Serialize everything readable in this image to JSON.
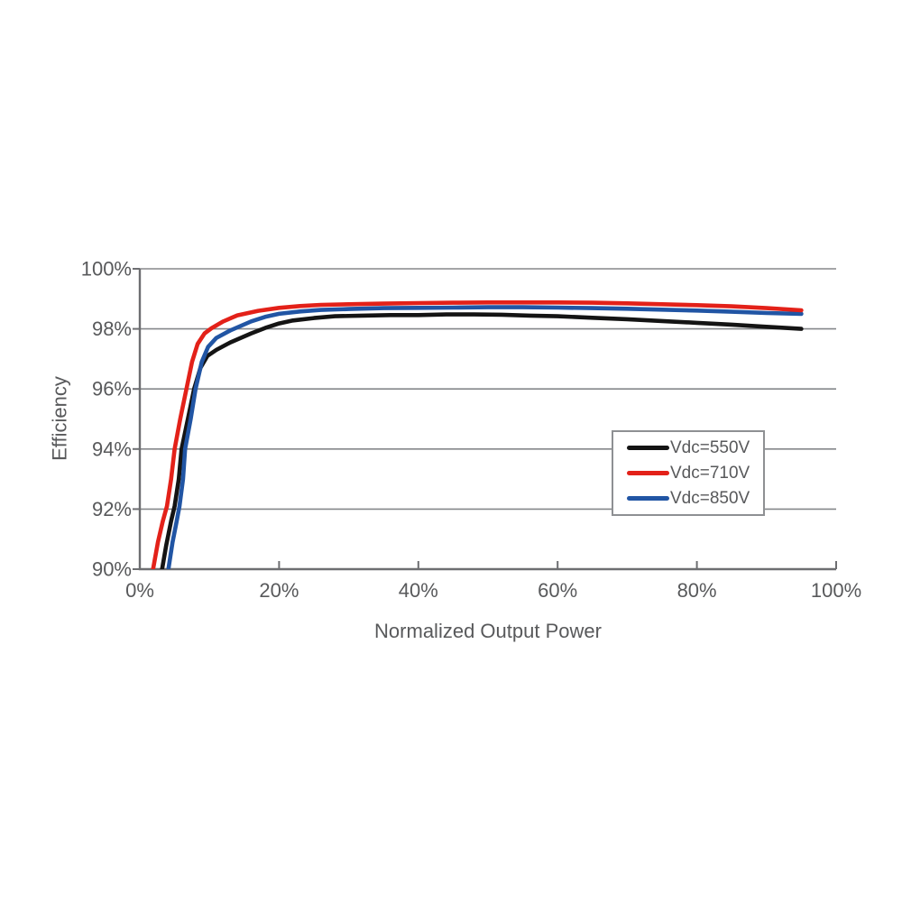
{
  "chart_data": {
    "type": "line",
    "title": "",
    "xlabel": "Normalized Output Power",
    "ylabel": "Efficiency",
    "xlim": [
      0,
      100
    ],
    "ylim": [
      90,
      100
    ],
    "grid": "horizontal",
    "legend_position": "inside-right-center",
    "x_ticks": [
      0,
      20,
      40,
      60,
      80,
      100
    ],
    "x_tick_labels": [
      "0%",
      "20%",
      "40%",
      "60%",
      "80%",
      "100%"
    ],
    "y_ticks": [
      100,
      98,
      96,
      94,
      92,
      90
    ],
    "y_tick_labels": [
      "100%",
      "98%",
      "96%",
      "94%",
      "92%",
      "90%"
    ],
    "series": [
      {
        "name": "Vdc=550V",
        "color": "#141414",
        "points": [
          [
            3.2,
            90
          ],
          [
            3.8,
            90.8
          ],
          [
            4.5,
            91.6
          ],
          [
            5.0,
            92.1
          ],
          [
            5.6,
            93.0
          ],
          [
            6.0,
            94.0
          ],
          [
            6.9,
            95.0
          ],
          [
            7.8,
            96.0
          ],
          [
            8.7,
            96.7
          ],
          [
            9.7,
            97.1
          ],
          [
            11,
            97.3
          ],
          [
            13,
            97.55
          ],
          [
            16,
            97.85
          ],
          [
            18,
            98.03
          ],
          [
            20,
            98.18
          ],
          [
            22,
            98.28
          ],
          [
            25,
            98.36
          ],
          [
            28,
            98.42
          ],
          [
            32,
            98.44
          ],
          [
            36,
            98.46
          ],
          [
            40,
            98.46
          ],
          [
            44,
            98.48
          ],
          [
            48,
            98.48
          ],
          [
            52,
            98.47
          ],
          [
            56,
            98.44
          ],
          [
            60,
            98.42
          ],
          [
            65,
            98.37
          ],
          [
            70,
            98.32
          ],
          [
            75,
            98.26
          ],
          [
            80,
            98.2
          ],
          [
            85,
            98.14
          ],
          [
            90,
            98.07
          ],
          [
            95,
            98.0
          ]
        ]
      },
      {
        "name": "Vdc=710V",
        "color": "#e32119",
        "points": [
          [
            1.9,
            90
          ],
          [
            2.6,
            90.9
          ],
          [
            3.3,
            91.6
          ],
          [
            3.9,
            92.1
          ],
          [
            4.5,
            93.0
          ],
          [
            5.0,
            94.0
          ],
          [
            5.8,
            95.0
          ],
          [
            6.7,
            96.0
          ],
          [
            7.5,
            96.9
          ],
          [
            8.3,
            97.5
          ],
          [
            9.3,
            97.85
          ],
          [
            10.3,
            98.02
          ],
          [
            12,
            98.25
          ],
          [
            14,
            98.45
          ],
          [
            17,
            98.6
          ],
          [
            20,
            98.7
          ],
          [
            23,
            98.76
          ],
          [
            26,
            98.8
          ],
          [
            30,
            98.82
          ],
          [
            35,
            98.84
          ],
          [
            40,
            98.86
          ],
          [
            45,
            98.87
          ],
          [
            50,
            98.88
          ],
          [
            55,
            98.88
          ],
          [
            60,
            98.88
          ],
          [
            65,
            98.87
          ],
          [
            70,
            98.85
          ],
          [
            75,
            98.82
          ],
          [
            80,
            98.79
          ],
          [
            85,
            98.75
          ],
          [
            90,
            98.69
          ],
          [
            95,
            98.62
          ]
        ]
      },
      {
        "name": "Vdc=850V",
        "color": "#2155a4",
        "points": [
          [
            4.1,
            90
          ],
          [
            4.7,
            90.9
          ],
          [
            5.3,
            91.6
          ],
          [
            5.7,
            92.1
          ],
          [
            6.2,
            93.0
          ],
          [
            6.5,
            94.0
          ],
          [
            7.3,
            95.0
          ],
          [
            8.0,
            96.0
          ],
          [
            8.9,
            96.9
          ],
          [
            9.8,
            97.4
          ],
          [
            11,
            97.7
          ],
          [
            13,
            97.95
          ],
          [
            16,
            98.25
          ],
          [
            18,
            98.4
          ],
          [
            20,
            98.5
          ],
          [
            23,
            98.58
          ],
          [
            26,
            98.63
          ],
          [
            30,
            98.66
          ],
          [
            35,
            98.69
          ],
          [
            40,
            98.7
          ],
          [
            45,
            98.71
          ],
          [
            50,
            98.72
          ],
          [
            55,
            98.72
          ],
          [
            60,
            98.71
          ],
          [
            65,
            98.69
          ],
          [
            70,
            98.67
          ],
          [
            75,
            98.64
          ],
          [
            80,
            98.61
          ],
          [
            85,
            98.57
          ],
          [
            90,
            98.53
          ],
          [
            95,
            98.5
          ]
        ]
      }
    ],
    "colors": {
      "axis": "#6d6e71",
      "grid": "#85878a",
      "text": "#58595b"
    }
  }
}
